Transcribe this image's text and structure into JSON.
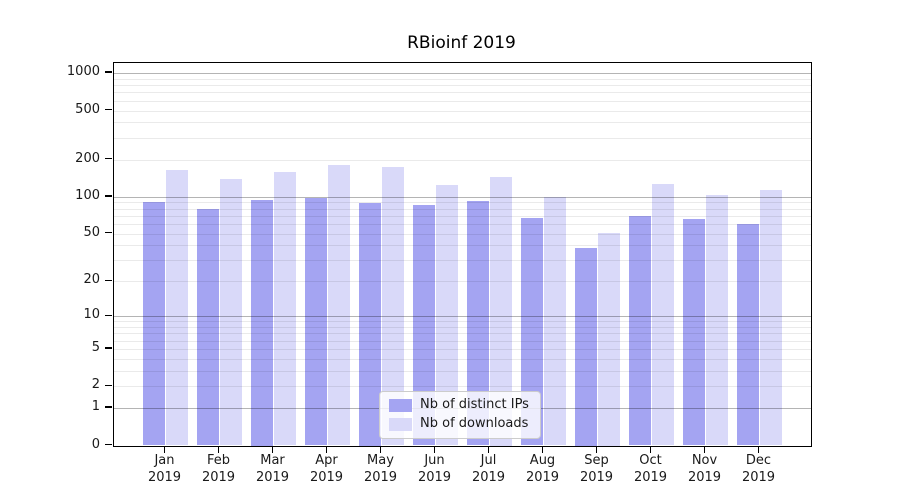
{
  "title": "RBioinf 2019",
  "chart_data": {
    "type": "bar",
    "title": "RBioinf 2019",
    "months": [
      "Jan",
      "Feb",
      "Mar",
      "Apr",
      "May",
      "Jun",
      "Jul",
      "Aug",
      "Sep",
      "Oct",
      "Nov",
      "Dec"
    ],
    "year_label": "2019",
    "series": [
      {
        "name": "Nb of distinct IPs",
        "color": "#a4a4f2",
        "values": [
          90,
          80,
          95,
          98,
          89,
          85,
          93,
          67,
          38,
          70,
          66,
          60
        ]
      },
      {
        "name": "Nb of downloads",
        "color": "#d9d9f9",
        "values": [
          164,
          140,
          160,
          180,
          174,
          124,
          146,
          99,
          51,
          126,
          103,
          114
        ]
      }
    ],
    "y_ticks": [
      0,
      1,
      2,
      5,
      10,
      20,
      50,
      100,
      200,
      500,
      1000
    ],
    "y_scale": "log1p",
    "ylim": [
      0,
      1200
    ],
    "xlabel": "",
    "ylabel": "",
    "grid": "horizontal",
    "grid_minor_values": [
      2,
      3,
      4,
      5,
      6,
      7,
      8,
      9,
      20,
      30,
      40,
      50,
      60,
      70,
      80,
      90,
      200,
      300,
      400,
      500,
      600,
      700,
      800,
      900
    ],
    "grid_major_values": [
      1,
      10,
      100,
      1000
    ],
    "legend_position": "lower center",
    "colors": {
      "grid_minor": "#eaeaea",
      "grid_major": "#b4b4b4",
      "axis": "#000000",
      "text": "#1a1a1a",
      "background": "#ffffff"
    }
  }
}
